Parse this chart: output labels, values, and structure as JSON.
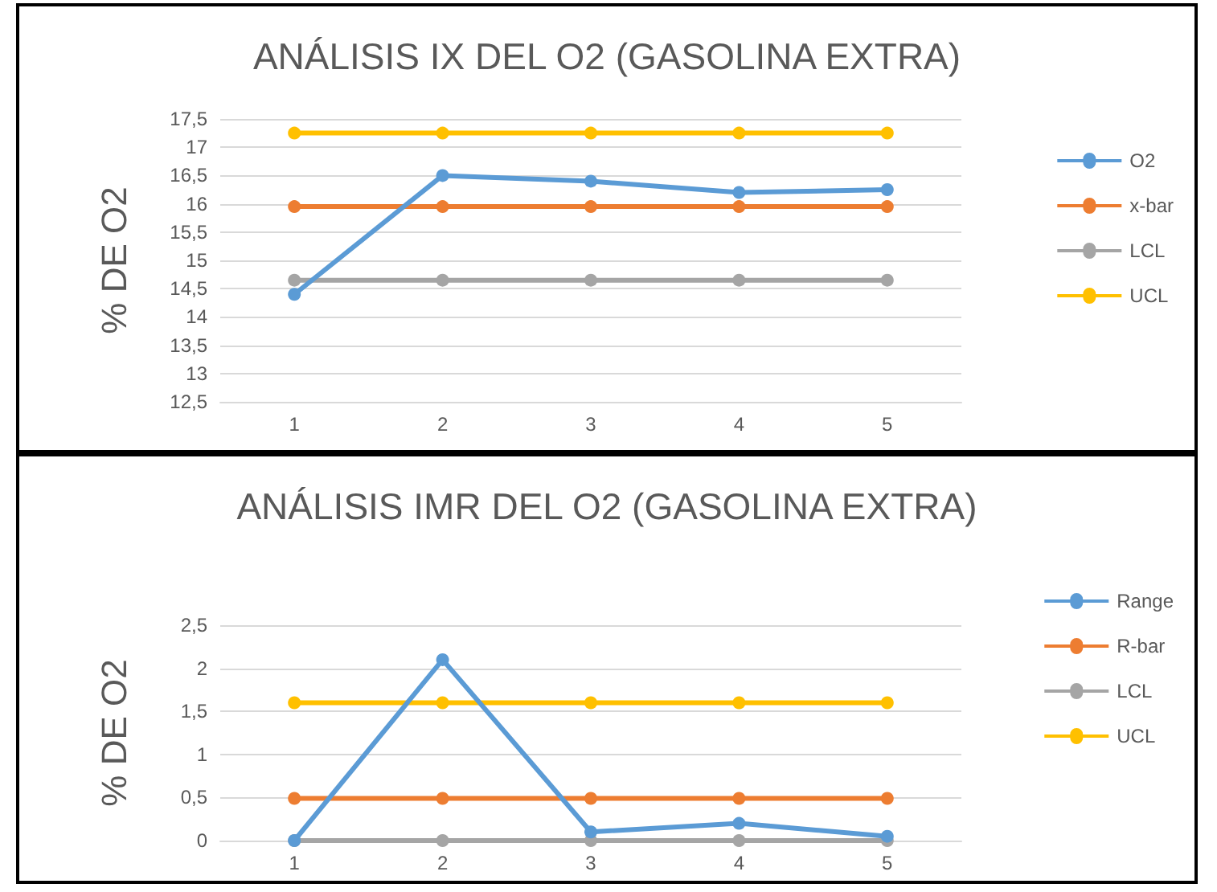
{
  "chart_data": [
    {
      "type": "line",
      "title": "ANÁLISIS IX DEL O2 (GASOLINA EXTRA)",
      "ylabel": "% DE O2",
      "categories": [
        "1",
        "2",
        "3",
        "4",
        "5"
      ],
      "series": [
        {
          "name": "O2",
          "color": "#5b9bd5",
          "values": [
            14.4,
            16.5,
            16.4,
            16.2,
            16.25
          ]
        },
        {
          "name": "x-bar",
          "color": "#ed7d31",
          "values": [
            15.95,
            15.95,
            15.95,
            15.95,
            15.95
          ]
        },
        {
          "name": "LCL",
          "color": "#a5a5a5",
          "values": [
            14.65,
            14.65,
            14.65,
            14.65,
            14.65
          ]
        },
        {
          "name": "UCL",
          "color": "#ffc000",
          "values": [
            17.25,
            17.25,
            17.25,
            17.25,
            17.25
          ]
        }
      ],
      "ylim": [
        12.5,
        17.5
      ],
      "yticks": [
        {
          "value": 12.5,
          "label": "12,5"
        },
        13,
        {
          "value": 13.5,
          "label": "13,5"
        },
        14,
        {
          "value": 14.5,
          "label": "14,5"
        },
        15,
        {
          "value": 15.5,
          "label": "15,5"
        },
        16,
        {
          "value": 16.5,
          "label": "16,5"
        },
        17,
        {
          "value": 17.5,
          "label": "17,5"
        }
      ],
      "grid": "y",
      "legend": "right",
      "marker": "circle",
      "line_style": "solid"
    },
    {
      "type": "line",
      "title": "ANÁLISIS IMR DEL O2 (GASOLINA EXTRA)",
      "ylabel": "% DE O2",
      "categories": [
        "1",
        "2",
        "3",
        "4",
        "5"
      ],
      "series": [
        {
          "name": "Range",
          "color": "#5b9bd5",
          "values": [
            0,
            2.1,
            0.1,
            0.2,
            0.05
          ]
        },
        {
          "name": "R-bar",
          "color": "#ed7d31",
          "values": [
            0.49,
            0.49,
            0.49,
            0.49,
            0.49
          ]
        },
        {
          "name": "LCL",
          "color": "#a5a5a5",
          "values": [
            0,
            0,
            0,
            0,
            0
          ]
        },
        {
          "name": "UCL",
          "color": "#ffc000",
          "values": [
            1.6,
            1.6,
            1.6,
            1.6,
            1.6
          ]
        }
      ],
      "ylim": [
        0,
        2.5
      ],
      "yticks": [
        0,
        {
          "value": 0.5,
          "label": "0,5"
        },
        1,
        {
          "value": 1.5,
          "label": "1,5"
        },
        2,
        {
          "value": 2.5,
          "label": "2,5"
        }
      ],
      "grid": "y",
      "legend": "right",
      "marker": "circle",
      "line_style": "solid"
    }
  ]
}
